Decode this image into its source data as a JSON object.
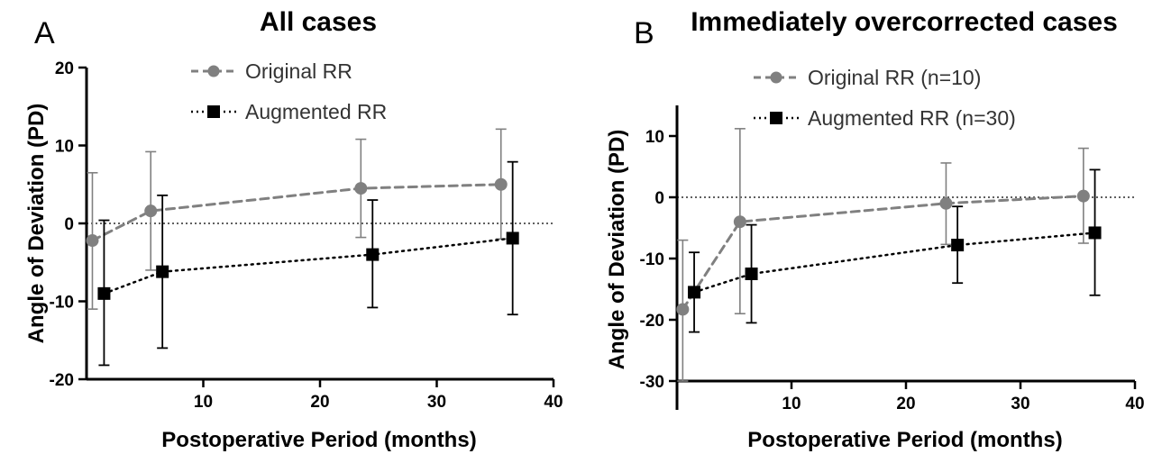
{
  "chart_data": [
    {
      "type": "line",
      "panel_letter": "A",
      "title": "All cases",
      "xlabel": "Postoperative Period (months)",
      "ylabel": "Angle of Deviation (PD)",
      "xlim": [
        0,
        40
      ],
      "ylim": [
        -20,
        20
      ],
      "xticks": [
        10,
        20,
        30,
        40
      ],
      "yticks": [
        -20,
        -10,
        0,
        10,
        20
      ],
      "reference_line": 0,
      "legend_position": "top-center",
      "series": [
        {
          "name": "Original RR",
          "marker": "circle",
          "line": "dashed",
          "color": "#808080",
          "x": [
            0.5,
            5.5,
            23.5,
            35.5
          ],
          "y": [
            -2.2,
            1.6,
            4.5,
            5.0
          ],
          "err_low": [
            -11.0,
            -6.0,
            -1.8,
            -2.0
          ],
          "err_high": [
            6.5,
            9.2,
            10.8,
            12.1
          ]
        },
        {
          "name": "Augmented RR",
          "marker": "square",
          "line": "dotted",
          "color": "#000000",
          "x": [
            1.5,
            6.5,
            24.5,
            36.5
          ],
          "y": [
            -9.0,
            -6.2,
            -4.0,
            -1.9
          ],
          "err_low": [
            -18.2,
            -16.0,
            -10.8,
            -11.7
          ],
          "err_high": [
            0.4,
            3.6,
            3.0,
            7.9
          ]
        }
      ]
    },
    {
      "type": "line",
      "panel_letter": "B",
      "title": "Immediately overcorrected cases",
      "xlabel": "Postoperative Period (months)",
      "ylabel": "Angle of Deviation (PD)",
      "xlim": [
        0,
        40
      ],
      "ylim": [
        -30,
        15
      ],
      "xticks": [
        10,
        20,
        30,
        40
      ],
      "yticks": [
        -30,
        -20,
        -10,
        0,
        10
      ],
      "reference_line": 0,
      "legend_position": "top-center",
      "series": [
        {
          "name": "Original RR (n=10)",
          "marker": "circle",
          "line": "dashed",
          "color": "#808080",
          "x": [
            0.5,
            5.5,
            23.5,
            35.5
          ],
          "y": [
            -18.3,
            -4.0,
            -1.0,
            0.2
          ],
          "err_low": [
            -30.0,
            -19.0,
            -7.7,
            -7.5
          ],
          "err_high": [
            -7.0,
            11.2,
            5.6,
            8.0
          ]
        },
        {
          "name": "Augmented RR (n=30)",
          "marker": "square",
          "line": "dotted",
          "color": "#000000",
          "x": [
            1.5,
            6.5,
            24.5,
            36.5
          ],
          "y": [
            -15.5,
            -12.5,
            -7.8,
            -5.8
          ],
          "err_low": [
            -22.0,
            -20.5,
            -14.0,
            -16.0
          ],
          "err_high": [
            -9.0,
            -4.5,
            -1.5,
            4.5
          ]
        }
      ]
    }
  ]
}
